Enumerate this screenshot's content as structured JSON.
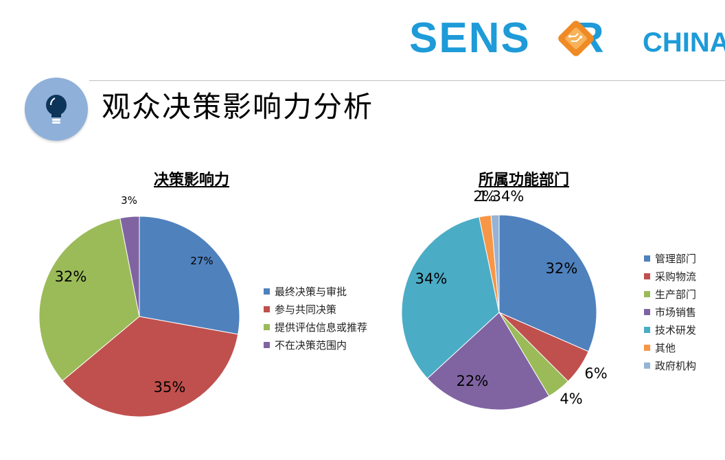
{
  "brand": {
    "logo_main": "SENS",
    "logo_main_end": "R",
    "logo_sub": "CHINA"
  },
  "page_title": "观众决策影响力分析",
  "chart_data": [
    {
      "type": "pie",
      "title": "决策影响力",
      "categories": [
        "最终决策与审批",
        "参与共同决策",
        "提供评估信息或推荐",
        "不在决策范围内"
      ],
      "values": [
        27,
        35,
        32,
        3
      ],
      "labels": [
        "27%",
        "35%",
        "32%",
        "3%"
      ],
      "colors": [
        "#4f81bd",
        "#c0504d",
        "#9bbb59",
        "#8064a2"
      ],
      "legend_position": "right"
    },
    {
      "type": "pie",
      "title": "所属功能部门",
      "categories": [
        "管理部门",
        "采购物流",
        "生产部门",
        "市场销售",
        "技术研发",
        "其他",
        "政府机构"
      ],
      "values": [
        32,
        6,
        4,
        22,
        34,
        2,
        1.34
      ],
      "labels": [
        "32%",
        "6%",
        "4%",
        "22%",
        "34%",
        "2%",
        "1.34%"
      ],
      "colors": [
        "#4f81bd",
        "#c0504d",
        "#9bbb59",
        "#8064a2",
        "#4bacc6",
        "#f79646",
        "#95b3d7"
      ],
      "legend_position": "right"
    }
  ]
}
